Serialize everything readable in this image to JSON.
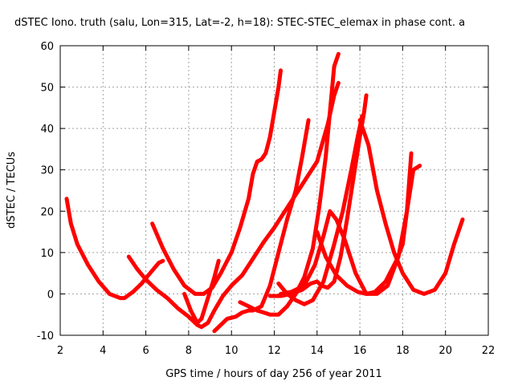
{
  "chart_data": {
    "type": "line",
    "title": "dSTEC Iono. truth (salu, Lon=315, Lat=-2, h=18): STEC-STEC_elemax in phase cont. a",
    "xlabel": "GPS time / hours of day 256 of year 2011",
    "ylabel": "dSTEC  / TECUs",
    "xlim": [
      2,
      22
    ],
    "ylim": [
      -10,
      60
    ],
    "xticks": [
      2,
      4,
      6,
      8,
      10,
      12,
      14,
      16,
      18,
      20,
      22
    ],
    "yticks": [
      -10,
      0,
      10,
      20,
      30,
      40,
      50,
      60
    ],
    "grid": true,
    "color": "#ff0000",
    "series": [
      {
        "points": [
          [
            2.3,
            23
          ],
          [
            2.5,
            17
          ],
          [
            2.8,
            12
          ],
          [
            3.3,
            7
          ],
          [
            3.8,
            3
          ],
          [
            4.3,
            0
          ],
          [
            4.8,
            -1
          ],
          [
            5.0,
            -1
          ],
          [
            5.4,
            0.5
          ],
          [
            5.8,
            2.5
          ],
          [
            6.2,
            5
          ],
          [
            6.6,
            7.5
          ],
          [
            6.8,
            8
          ]
        ]
      },
      {
        "points": [
          [
            5.2,
            9
          ],
          [
            5.6,
            6
          ],
          [
            6.0,
            3.5
          ],
          [
            6.5,
            1
          ],
          [
            7.0,
            -1
          ],
          [
            7.5,
            -3.5
          ],
          [
            8.0,
            -5.5
          ],
          [
            8.4,
            -7.5
          ],
          [
            8.6,
            -8
          ],
          [
            8.9,
            -7
          ],
          [
            9.2,
            -4
          ],
          [
            9.6,
            -0.5
          ],
          [
            10.0,
            2
          ],
          [
            10.5,
            4.5
          ],
          [
            11.0,
            8.5
          ],
          [
            11.5,
            12.5
          ],
          [
            12.0,
            16
          ],
          [
            12.5,
            20
          ],
          [
            13.0,
            24
          ],
          [
            13.5,
            28
          ],
          [
            14.0,
            32
          ],
          [
            14.5,
            41
          ],
          [
            14.8,
            48
          ],
          [
            15.0,
            51
          ]
        ]
      },
      {
        "points": [
          [
            6.3,
            17
          ],
          [
            6.8,
            11
          ],
          [
            7.3,
            6
          ],
          [
            7.8,
            2
          ],
          [
            8.3,
            0
          ],
          [
            8.7,
            0
          ],
          [
            9.1,
            1.5
          ],
          [
            9.5,
            5
          ],
          [
            10.0,
            10
          ],
          [
            10.4,
            16
          ],
          [
            10.8,
            23
          ],
          [
            11.0,
            29
          ],
          [
            11.2,
            32
          ],
          [
            11.4,
            32.5
          ],
          [
            11.6,
            34
          ],
          [
            11.8,
            38
          ],
          [
            12.0,
            44
          ],
          [
            12.2,
            50
          ],
          [
            12.3,
            54
          ]
        ]
      },
      {
        "points": [
          [
            7.8,
            0
          ],
          [
            8.1,
            -4
          ],
          [
            8.4,
            -7
          ],
          [
            8.6,
            -6
          ],
          [
            8.9,
            -1
          ],
          [
            9.2,
            4
          ],
          [
            9.4,
            8
          ]
        ]
      },
      {
        "points": [
          [
            9.2,
            -9
          ],
          [
            9.5,
            -7.5
          ],
          [
            9.8,
            -6
          ],
          [
            10.2,
            -5.5
          ],
          [
            10.5,
            -4.5
          ],
          [
            10.8,
            -4
          ],
          [
            11.0,
            -4
          ],
          [
            11.4,
            -3
          ],
          [
            11.8,
            2
          ],
          [
            12.2,
            10
          ],
          [
            12.6,
            18
          ],
          [
            13.0,
            25
          ],
          [
            13.3,
            33
          ],
          [
            13.6,
            42
          ]
        ]
      },
      {
        "points": [
          [
            10.4,
            -2
          ],
          [
            10.8,
            -3
          ],
          [
            11.2,
            -4
          ],
          [
            11.5,
            -4.5
          ],
          [
            11.8,
            -5
          ],
          [
            12.2,
            -5
          ],
          [
            12.6,
            -3
          ],
          [
            13.0,
            0
          ],
          [
            13.4,
            4
          ],
          [
            13.8,
            11
          ],
          [
            14.1,
            21
          ],
          [
            14.4,
            33
          ],
          [
            14.6,
            44
          ],
          [
            14.8,
            55
          ],
          [
            15.0,
            58
          ]
        ]
      },
      {
        "points": [
          [
            11.8,
            -0.5
          ],
          [
            12.3,
            -0.5
          ],
          [
            12.8,
            0
          ],
          [
            13.3,
            1
          ],
          [
            13.7,
            2.5
          ],
          [
            14.0,
            3
          ],
          [
            14.2,
            2
          ],
          [
            14.5,
            1.5
          ],
          [
            14.8,
            3
          ],
          [
            15.1,
            9
          ],
          [
            15.4,
            18
          ],
          [
            15.7,
            28
          ],
          [
            16.0,
            38
          ],
          [
            16.2,
            44
          ],
          [
            16.3,
            48
          ]
        ]
      },
      {
        "points": [
          [
            12.2,
            2.5
          ],
          [
            12.6,
            0
          ],
          [
            13.0,
            -1.5
          ],
          [
            13.4,
            -2.5
          ],
          [
            13.8,
            -1.5
          ],
          [
            14.3,
            3
          ],
          [
            14.8,
            12
          ],
          [
            15.2,
            20
          ],
          [
            15.6,
            30
          ],
          [
            15.9,
            38
          ],
          [
            16.1,
            43
          ]
        ]
      },
      {
        "points": [
          [
            12.3,
            0
          ],
          [
            12.8,
            0.5
          ],
          [
            13.4,
            2
          ],
          [
            13.9,
            7
          ],
          [
            14.3,
            14
          ],
          [
            14.6,
            20
          ],
          [
            14.9,
            18
          ],
          [
            15.3,
            13
          ],
          [
            15.8,
            5
          ],
          [
            16.3,
            0
          ],
          [
            16.8,
            0
          ],
          [
            17.3,
            2
          ],
          [
            17.8,
            9
          ],
          [
            18.2,
            20
          ],
          [
            18.5,
            30
          ],
          [
            18.8,
            31
          ]
        ]
      },
      {
        "points": [
          [
            14.0,
            15
          ],
          [
            14.4,
            9
          ],
          [
            14.9,
            4.5
          ],
          [
            15.4,
            2
          ],
          [
            15.9,
            0.5
          ],
          [
            16.3,
            0
          ],
          [
            16.7,
            0.5
          ],
          [
            17.2,
            3
          ],
          [
            17.7,
            8
          ],
          [
            18.0,
            12
          ],
          [
            18.2,
            20
          ],
          [
            18.4,
            34
          ]
        ]
      },
      {
        "points": [
          [
            16.0,
            42
          ],
          [
            16.4,
            36
          ],
          [
            16.8,
            25
          ],
          [
            17.2,
            17
          ],
          [
            17.6,
            10
          ],
          [
            18.0,
            5
          ],
          [
            18.5,
            1
          ],
          [
            19.0,
            0
          ],
          [
            19.5,
            1
          ],
          [
            20.0,
            5
          ],
          [
            20.4,
            12
          ],
          [
            20.8,
            18
          ]
        ]
      }
    ]
  }
}
